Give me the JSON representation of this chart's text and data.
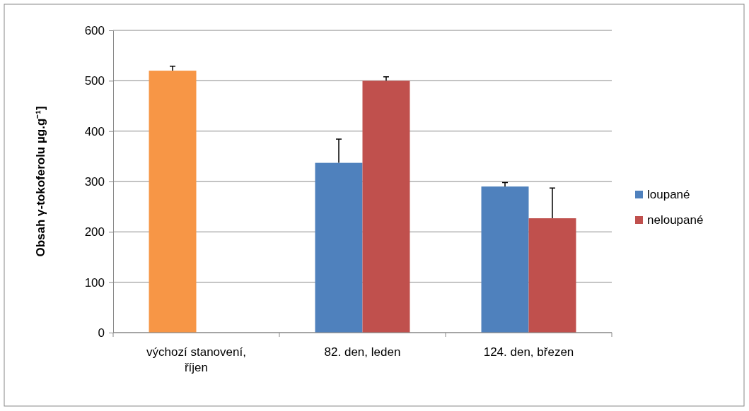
{
  "chart_data": {
    "type": "bar",
    "ylabel": "Obsah γ-tokoferolu µg.g⁻¹]",
    "categories": [
      "výchozí stanovení, říjen",
      "82. den, leden",
      "124. den, březen"
    ],
    "series": [
      {
        "name": "loupané",
        "color": "#4f81bd",
        "colors": [
          "#f79646",
          "#4f81bd",
          "#4f81bd"
        ],
        "values": [
          520,
          337,
          290
        ],
        "errors": [
          [
            520,
            529
          ],
          [
            337,
            384
          ],
          [
            290,
            298
          ]
        ]
      },
      {
        "name": "neloupané",
        "color": "#c0504d",
        "values": [
          null,
          500,
          227
        ],
        "errors": [
          null,
          [
            500,
            508
          ],
          [
            227,
            287
          ]
        ]
      }
    ],
    "ylim": [
      0,
      600
    ],
    "yticks": [
      0,
      100,
      200,
      300,
      400,
      500,
      600
    ],
    "grid": "y",
    "legend": "right"
  }
}
